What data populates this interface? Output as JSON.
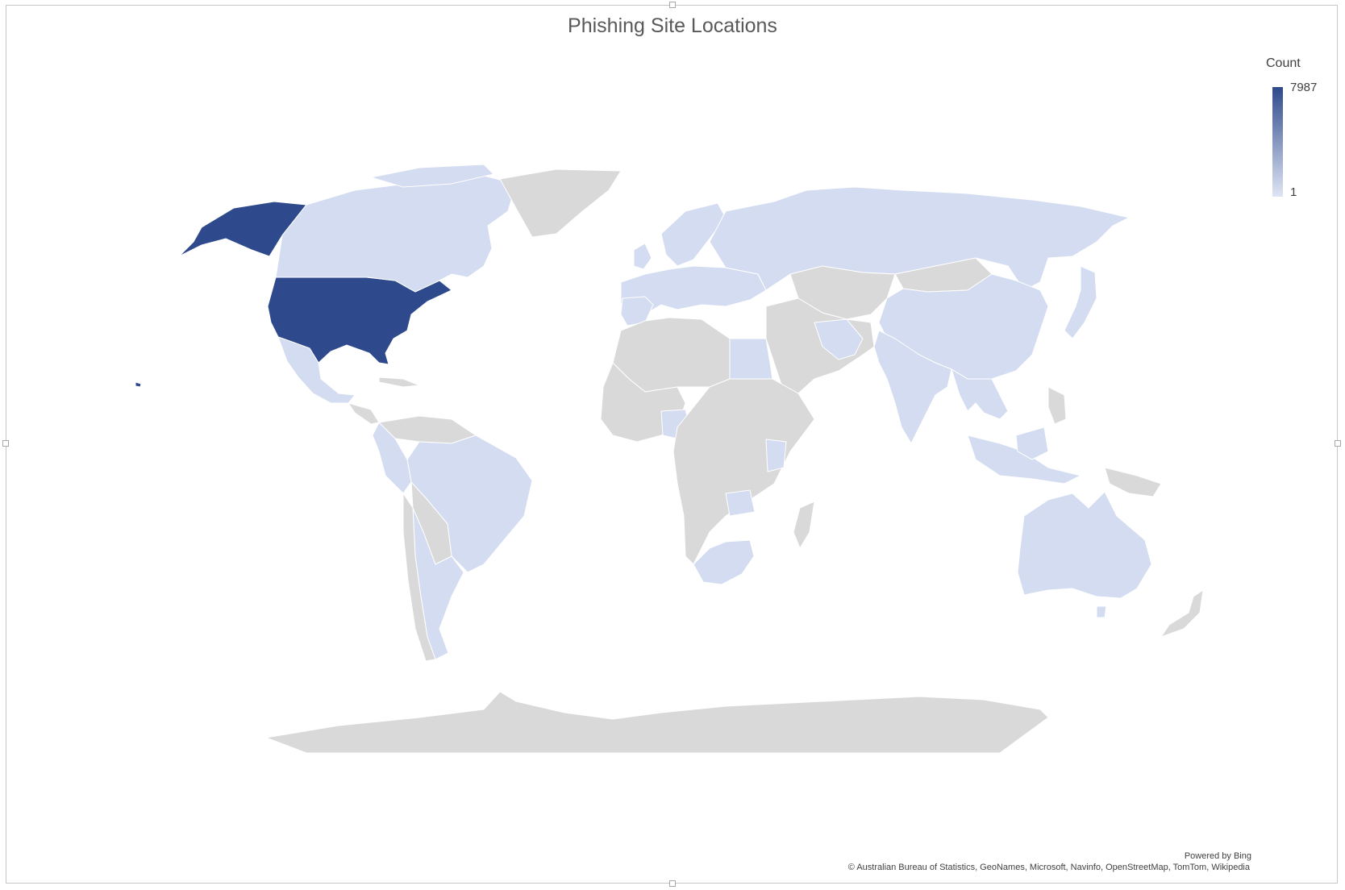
{
  "chart_data": {
    "type": "map",
    "title": "Phishing Site Locations",
    "legend": {
      "title": "Count",
      "max_label": "7987",
      "min_label": "1",
      "max_color": "#2e4a8c",
      "min_color": "#dfe5f3",
      "position": "top-right"
    },
    "regions": [
      {
        "name": "United States",
        "value": 7987
      },
      {
        "name": "Canada",
        "value": 1
      },
      {
        "name": "Russia",
        "value": 1
      },
      {
        "name": "Mexico",
        "value": 1
      },
      {
        "name": "Brazil",
        "value": 1
      },
      {
        "name": "Argentina",
        "value": 1
      },
      {
        "name": "China",
        "value": 1
      },
      {
        "name": "India",
        "value": 1
      },
      {
        "name": "Australia",
        "value": 1
      },
      {
        "name": "Egypt",
        "value": 1
      },
      {
        "name": "South Africa",
        "value": 1
      },
      {
        "name": "Nigeria",
        "value": 1
      },
      {
        "name": "Japan",
        "value": 1
      },
      {
        "name": "Indonesia",
        "value": 1
      }
    ],
    "no_data_color": "#d9d9d9"
  },
  "attribution": {
    "powered_by": "Powered by Bing",
    "sources": "© Australian Bureau of Statistics, GeoNames, Microsoft, Navinfo, OpenStreetMap, TomTom, Wikipedia"
  }
}
